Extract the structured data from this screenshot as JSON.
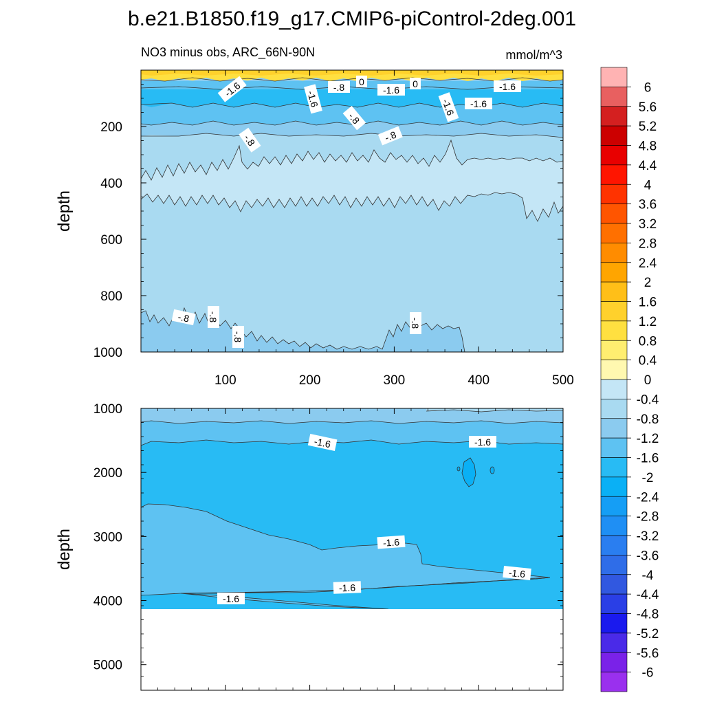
{
  "chart_data": {
    "type": "contour",
    "title": "b.e21.B1850.f19_g17.CMIP6-piControl-2deg.001",
    "panels": [
      {
        "subtitle_left": "NO3 minus obs, ARC_66N-90N",
        "subtitle_right": "mmol/m^3",
        "ylabel": "depth",
        "xlim": [
          0,
          500
        ],
        "ylim": [
          1000,
          0
        ],
        "x_ticks": [
          "100",
          "200",
          "300",
          "400",
          "500"
        ],
        "y_ticks": [
          "200",
          "400",
          "600",
          "800",
          "1000"
        ],
        "bands": [
          {
            "level": "0 to 0.4",
            "depth_top": 0,
            "depth_bottom": 35
          },
          {
            "level": "-1.6 to -2",
            "depth_top": 50,
            "depth_bottom": 160
          },
          {
            "level": "-1.2 to -1.6",
            "depth_top": 160,
            "depth_bottom": 225
          },
          {
            "level": "-0.4 to -0.8",
            "depth_top": 225,
            "depth_bottom": 880
          },
          {
            "level": "0 to -0.4",
            "depth_top": 340,
            "depth_bottom": 460
          },
          {
            "level": "-0.8 to -1.2",
            "depth_top": 880,
            "depth_bottom": 1000
          }
        ],
        "contour_labels": [
          "-1.6",
          "-1.6",
          "-.8",
          "0",
          "-1.6",
          "0",
          "-1.6",
          "-.8",
          "-1.6",
          "-1.6",
          "-.8",
          "-.8",
          "-.8",
          "-.8",
          "-.8",
          "-.8"
        ]
      },
      {
        "subtitle_left": "",
        "subtitle_right": "",
        "ylabel": "depth",
        "xlim": [
          0,
          500
        ],
        "ylim": [
          5400,
          1000
        ],
        "x_ticks": [],
        "y_ticks": [
          "1000",
          "2000",
          "3000",
          "4000",
          "5000"
        ],
        "bands": [
          {
            "level": "-0.8 to -1.2",
            "depth_top": 1000,
            "depth_bottom": 1250
          },
          {
            "level": "-1.2 to -1.6",
            "depth_top": 1250,
            "depth_bottom": 1550
          },
          {
            "level": "-1.6 to -2",
            "depth_top": 1550,
            "depth_bottom": 4120
          },
          {
            "level": "-1.2 to -1.6",
            "depth_top": 2500,
            "depth_bottom": 3500
          }
        ],
        "bottom_of_data": 4120,
        "contour_labels": [
          "-1.6",
          "-1.6",
          "-1.6",
          "-1.6",
          "-1.6",
          "-1.6"
        ]
      }
    ],
    "colorbar": {
      "labels": [
        "6",
        "5.6",
        "5.2",
        "4.8",
        "4.4",
        "4",
        "3.6",
        "3.2",
        "2.8",
        "2.4",
        "2",
        "1.6",
        "1.2",
        "0.8",
        "0.4",
        "0",
        "-0.4",
        "-0.8",
        "-1.2",
        "-1.6",
        "-2",
        "-2.4",
        "-2.8",
        "-3.2",
        "-3.6",
        "-4",
        "-4.4",
        "-4.8",
        "-5.2",
        "-5.6",
        "-6"
      ],
      "colors": [
        "#ffb3b3",
        "#e86060",
        "#d42020",
        "#cc0000",
        "#e80000",
        "#ff1500",
        "#ff3300",
        "#ff5500",
        "#ff7000",
        "#ff8c00",
        "#ffa500",
        "#ffbf18",
        "#ffd12c",
        "#ffe040",
        "#ffee70",
        "#fff8b0",
        "#c4e6f6",
        "#a9daf1",
        "#8bcbef",
        "#5ec2f2",
        "#28bbf4",
        "#0ab0f5",
        "#159ef5",
        "#1f8ff4",
        "#2a7ef0",
        "#2f6de8",
        "#3158e0",
        "#2a3fe6",
        "#1a1aee",
        "#4a2ae8",
        "#7a22e8",
        "#9a30ee"
      ]
    }
  }
}
